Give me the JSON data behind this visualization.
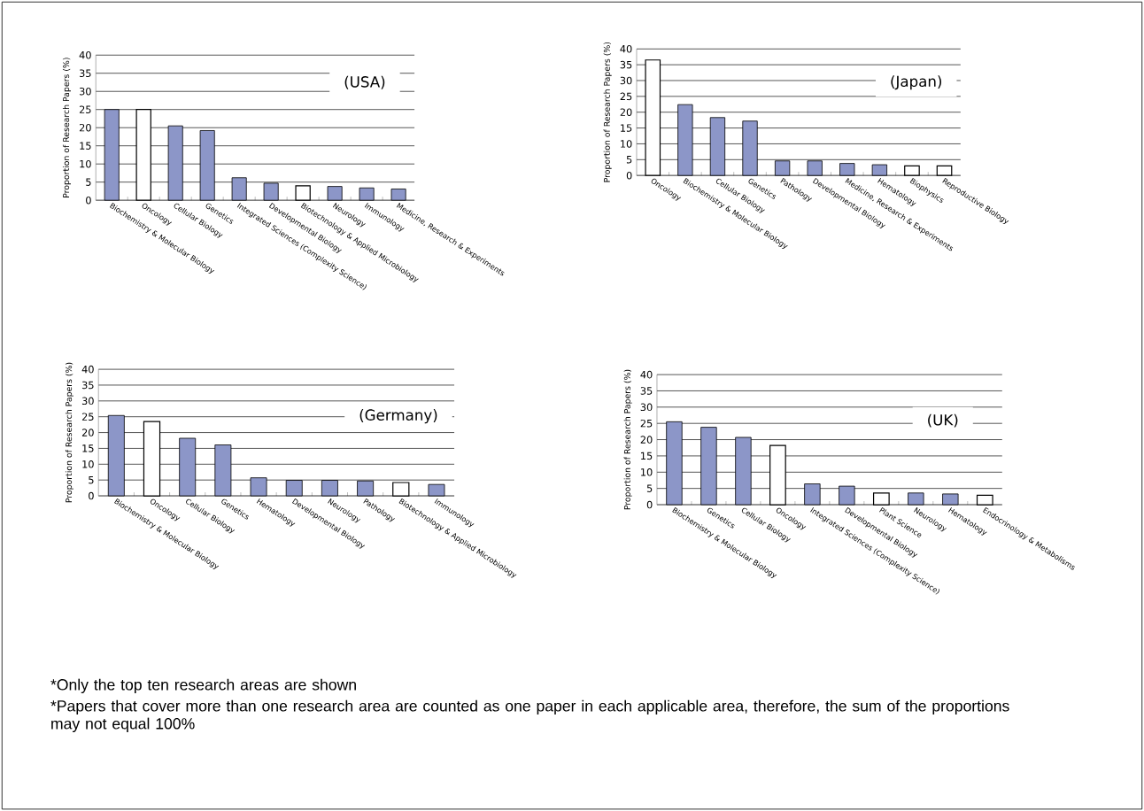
{
  "chart_data": [
    {
      "type": "bar",
      "title": "(USA)",
      "ylabel": "Proportion of Research Papers (%)",
      "categories": [
        "Biochemistry & Molecular Biology",
        "Oncology",
        "Cellular Biology",
        "Genetics",
        "Integrated Sciences (Complexity Science)",
        "Developmental Biology",
        "Biotechnology & Applied Microbiology",
        "Neurology",
        "Immunology",
        "Medicine, Research & Experiments"
      ],
      "values": [
        25,
        25,
        20.5,
        19.2,
        6.2,
        4.7,
        4.0,
        3.8,
        3.4,
        3.1
      ],
      "colors": [
        "#8c96c8",
        "#ffffff",
        "#8c96c8",
        "#8c96c8",
        "#8c96c8",
        "#8c96c8",
        "#ffffff",
        "#8c96c8",
        "#8c96c8",
        "#8c96c8"
      ],
      "ylim": [
        0,
        40
      ],
      "yticks": [
        0,
        5,
        10,
        15,
        20,
        25,
        30,
        35,
        40
      ],
      "grid": "y"
    },
    {
      "type": "bar",
      "title": "(Japan)",
      "ylabel": "Proportion of Research Papers (%)",
      "categories": [
        "Oncology",
        "Biochemistry & Molecular Biology",
        "Cellular Biology",
        "Genetics",
        "Pathology",
        "Developmental Biology",
        "Medicine, Research & Experiments",
        "Hematology",
        "Biophysics",
        "Reproductive Biology"
      ],
      "values": [
        36.5,
        22.4,
        18.3,
        17.2,
        4.6,
        4.6,
        3.8,
        3.4,
        3.0,
        3.0
      ],
      "colors": [
        "#ffffff",
        "#8c96c8",
        "#8c96c8",
        "#8c96c8",
        "#8c96c8",
        "#8c96c8",
        "#8c96c8",
        "#8c96c8",
        "#ffffff",
        "#ffffff"
      ],
      "ylim": [
        0,
        40
      ],
      "yticks": [
        0,
        5,
        10,
        15,
        20,
        25,
        30,
        35,
        40
      ],
      "grid": "y"
    },
    {
      "type": "bar",
      "title": "(Germany)",
      "ylabel": "Proportion of Research Papers (%)",
      "categories": [
        "Biochemistry & Molecular Biology",
        "Oncology",
        "Cellular Biology",
        "Genetics",
        "Hematology",
        "Developmental Biology",
        "Neurology",
        "Pathology",
        "Biotechnology & Applied Microbiology",
        "Immunology"
      ],
      "values": [
        25.4,
        23.5,
        18.2,
        16.1,
        5.7,
        4.9,
        4.9,
        4.7,
        4.2,
        3.6
      ],
      "colors": [
        "#8c96c8",
        "#ffffff",
        "#8c96c8",
        "#8c96c8",
        "#8c96c8",
        "#8c96c8",
        "#8c96c8",
        "#8c96c8",
        "#ffffff",
        "#8c96c8"
      ],
      "ylim": [
        0,
        40
      ],
      "yticks": [
        0,
        5,
        10,
        15,
        20,
        25,
        30,
        35,
        40
      ],
      "grid": "y"
    },
    {
      "type": "bar",
      "title": "(UK)",
      "ylabel": "Proportion of Research Papers (%)",
      "categories": [
        "Biochemistry & Molecular Biology",
        "Genetics",
        "Cellular Biology",
        "Oncology",
        "Integrated Sciences (Complexity Science)",
        "Developmental Biology",
        "Plant Science",
        "Neurology",
        "Hematology",
        "Endocrinology & Metabolisms"
      ],
      "values": [
        25.5,
        23.8,
        20.7,
        18.2,
        6.4,
        5.7,
        3.6,
        3.6,
        3.3,
        2.9
      ],
      "colors": [
        "#8c96c8",
        "#8c96c8",
        "#8c96c8",
        "#ffffff",
        "#8c96c8",
        "#8c96c8",
        "#ffffff",
        "#8c96c8",
        "#8c96c8",
        "#ffffff"
      ],
      "ylim": [
        0,
        40
      ],
      "yticks": [
        0,
        5,
        10,
        15,
        20,
        25,
        30,
        35,
        40
      ],
      "grid": "y",
      "annotations": [
        "*Only the top ten research areas are shown",
        "*Papers that cover more than one research area are counted as one paper in each applicable area, therefore, the sum of the proportions may not equal 100%"
      ]
    }
  ]
}
